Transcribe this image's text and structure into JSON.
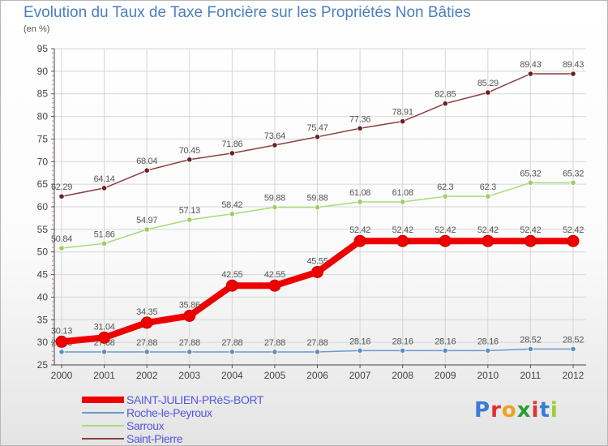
{
  "title": "Evolution du Taux de Taxe Foncière sur les Propriétés Non Bâties",
  "unit": "(en %)",
  "logo": {
    "text": "Proxiti",
    "colors": [
      "#3a7bd5",
      "#e03030",
      "#f0a020",
      "#2a9d3a",
      "#e03030",
      "#3a7bd5",
      "#9acd32"
    ]
  },
  "chart_data": {
    "type": "line",
    "x": [
      "2000",
      "2001",
      "2002",
      "2003",
      "2004",
      "2005",
      "2006",
      "2007",
      "2008",
      "2009",
      "2010",
      "2011",
      "2012"
    ],
    "ylim": [
      25,
      95
    ],
    "yticks": [
      25,
      30,
      35,
      40,
      45,
      50,
      55,
      60,
      65,
      70,
      75,
      80,
      85,
      90,
      95
    ],
    "grid": true,
    "legend_position": "bottom-left",
    "series": [
      {
        "name": "SAINT-JULIEN-PRèS-BORT",
        "color": "#ee0000",
        "width": 8,
        "values": [
          30.13,
          31.04,
          34.35,
          35.86,
          42.55,
          42.55,
          45.55,
          52.42,
          52.42,
          52.42,
          52.42,
          52.42,
          52.42
        ],
        "labels": [
          "30.13",
          "31.04",
          "34.35",
          "35.86",
          "42.55",
          "42.55",
          "45.55",
          "52.42",
          "52.42",
          "52.42",
          "52.42",
          "52.42",
          "52.42"
        ]
      },
      {
        "name": "Roche-le-Peyroux",
        "color": "#6a9bc8",
        "width": 1.5,
        "values": [
          27.88,
          27.88,
          27.88,
          27.88,
          27.88,
          27.88,
          27.88,
          28.16,
          28.16,
          28.16,
          28.16,
          28.52,
          28.52
        ],
        "labels": [
          "27.88",
          "27.88",
          "27.88",
          "27.88",
          "27.88",
          "27.88",
          "27.88",
          "28.16",
          "28.16",
          "28.16",
          "28.16",
          "28.52",
          "28.52"
        ]
      },
      {
        "name": "Sarroux",
        "color": "#a8dc78",
        "width": 1.5,
        "values": [
          50.84,
          51.86,
          54.97,
          57.13,
          58.42,
          59.88,
          59.88,
          61.08,
          61.08,
          62.3,
          62.3,
          65.32,
          65.32
        ],
        "labels": [
          "50.84",
          "51.86",
          "54.97",
          "57.13",
          "58.42",
          "59.88",
          "59.88",
          "61.08",
          "61.08",
          "62.3",
          "62.3",
          "65.32",
          "65.32"
        ]
      },
      {
        "name": "Saint-Pierre",
        "color": "#8a4040",
        "width": 1.5,
        "values": [
          62.29,
          64.14,
          68.04,
          70.45,
          71.86,
          73.64,
          75.47,
          77.36,
          78.91,
          82.85,
          85.29,
          89.43,
          89.43
        ],
        "labels": [
          "62.29",
          "64.14",
          "68.04",
          "70.45",
          "71.86",
          "73.64",
          "75.47",
          "77.36",
          "78.91",
          "82.85",
          "85.29",
          "89.43",
          "89.43"
        ]
      }
    ]
  }
}
